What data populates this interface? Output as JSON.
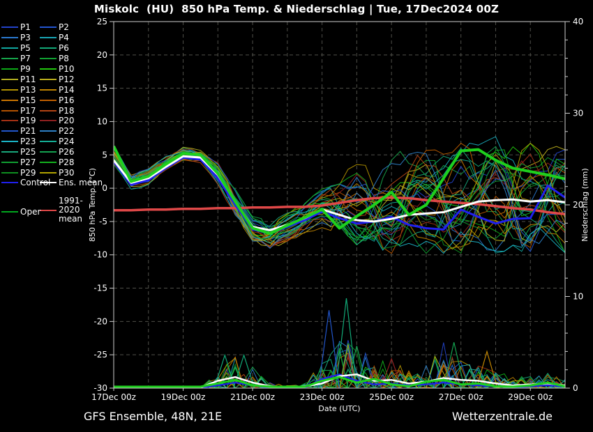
{
  "title": "Miskolc  (HU)  850 hPa Temp. & Niederschlag | Tue, 17Dec2024 00Z",
  "footer": {
    "left": "GFS Ensemble, 48N, 21E",
    "right": "Wetterzentrale.de"
  },
  "colors": {
    "background": "#000000",
    "frame": "#cfcfcf",
    "grid": "#50504a",
    "text": "#ffffff",
    "ens_mean": "#ffffff",
    "control": "#2020ee",
    "oper_line": "#1ed01e",
    "oper_legend": "#00a81e",
    "climate": "#e04848"
  },
  "legend": {
    "members": [
      {
        "label": "P1",
        "color": "#2343cc"
      },
      {
        "label": "P2",
        "color": "#2356d2"
      },
      {
        "label": "P3",
        "color": "#2b79d0"
      },
      {
        "label": "P4",
        "color": "#18a6b6"
      },
      {
        "label": "P5",
        "color": "#10a8a0"
      },
      {
        "label": "P6",
        "color": "#12aa78"
      },
      {
        "label": "P7",
        "color": "#16a34a"
      },
      {
        "label": "P8",
        "color": "#10a032"
      },
      {
        "label": "P9",
        "color": "#0caa16"
      },
      {
        "label": "P10",
        "color": "#22c80e"
      },
      {
        "label": "P11",
        "color": "#b4b020"
      },
      {
        "label": "P12",
        "color": "#bdb01c"
      },
      {
        "label": "P13",
        "color": "#b29200"
      },
      {
        "label": "P14",
        "color": "#c08400"
      },
      {
        "label": "P15",
        "color": "#cc7600"
      },
      {
        "label": "P16",
        "color": "#c26000"
      },
      {
        "label": "P17",
        "color": "#b35200"
      },
      {
        "label": "P18",
        "color": "#b44414"
      },
      {
        "label": "P19",
        "color": "#a33014"
      },
      {
        "label": "P20",
        "color": "#8e2020"
      },
      {
        "label": "P21",
        "color": "#2256cc"
      },
      {
        "label": "P22",
        "color": "#2d80c6"
      },
      {
        "label": "P23",
        "color": "#1ab4c6"
      },
      {
        "label": "P24",
        "color": "#14ae96"
      },
      {
        "label": "P25",
        "color": "#18a87c"
      },
      {
        "label": "P26",
        "color": "#14a350"
      },
      {
        "label": "P27",
        "color": "#10a032"
      },
      {
        "label": "P28",
        "color": "#14b21e"
      },
      {
        "label": "P29",
        "color": "#0e9020"
      },
      {
        "label": "P30",
        "color": "#b2a400"
      }
    ],
    "control_label": "Control",
    "ens_mean_label": "Ens. mean",
    "climate_label_line1": "1991-2020",
    "climate_label_line2": "mean",
    "oper_label": "Oper"
  },
  "axes": {
    "x": {
      "label": "Date (UTC)",
      "tick_labels": [
        "17Dec 00z",
        "19Dec 00z",
        "21Dec 00z",
        "23Dec 00z",
        "25Dec 00z",
        "27Dec 00z",
        "29Dec 00z"
      ],
      "label_every_days": 2,
      "grid_every_days": 1,
      "days_total": 13
    },
    "y_left": {
      "label": "850 hPa Temp. (°C)",
      "min": -30,
      "max": 25,
      "tick_step": 5
    },
    "y_right": {
      "label": "Niederschlag (mm)",
      "min": 0,
      "max": 40,
      "tick_step": 10,
      "minor_step": 2
    }
  },
  "chart_data": {
    "type": "line",
    "title": "Miskolc (HU) 850 hPa Temp. & Niederschlag | Tue, 17Dec2024 00Z",
    "xlabel": "Date (UTC)",
    "ylabel_left": "850 hPa Temp. (°C)",
    "ylabel_right": "Niederschlag (mm)",
    "ylim_temp": [
      -30,
      25
    ],
    "ylim_precip": [
      0,
      40
    ],
    "x_days": [
      0,
      0.5,
      1,
      1.5,
      2,
      2.5,
      3,
      3.5,
      4,
      4.5,
      5,
      5.5,
      6,
      6.5,
      7,
      7.5,
      8,
      8.5,
      9,
      9.5,
      10,
      10.5,
      11,
      11.5,
      12,
      12.5,
      13
    ],
    "temp_series": [
      {
        "name": "1991-2020 mean",
        "color": "#e04848",
        "width": 3.5,
        "values": [
          -3.3,
          -3.3,
          -3.2,
          -3.2,
          -3.1,
          -3.1,
          -3.0,
          -3.0,
          -2.9,
          -2.9,
          -2.8,
          -2.8,
          -2.6,
          -2.2,
          -1.8,
          -1.5,
          -1.4,
          -1.5,
          -1.8,
          -2.0,
          -2.2,
          -2.4,
          -2.7,
          -3.0,
          -3.2,
          -3.6,
          -3.9
        ]
      },
      {
        "name": "Control",
        "color": "#2020ee",
        "width": 3,
        "values": [
          4.0,
          0.5,
          1.2,
          3.0,
          4.6,
          4.3,
          1.5,
          -2.5,
          -6.2,
          -6.8,
          -5.8,
          -4.8,
          -3.5,
          -4.5,
          -5.3,
          -5.0,
          -4.3,
          -5.5,
          -6.0,
          -6.2,
          -3.2,
          -4.3,
          -5.3,
          -4.6,
          -4.5,
          0.4,
          -1.4
        ]
      },
      {
        "name": "Ens. mean",
        "color": "#ffffff",
        "width": 3,
        "values": [
          4.2,
          0.8,
          1.5,
          3.2,
          4.8,
          4.6,
          2.0,
          -2.0,
          -5.8,
          -6.3,
          -5.5,
          -4.5,
          -3.2,
          -4.0,
          -4.8,
          -5.0,
          -4.6,
          -4.0,
          -3.8,
          -3.6,
          -2.8,
          -2.0,
          -1.8,
          -1.7,
          -2.0,
          -1.8,
          -2.1
        ]
      },
      {
        "name": "Oper",
        "color": "#1ed01e",
        "width": 4,
        "values": [
          6.3,
          1.0,
          1.8,
          3.6,
          5.2,
          5.0,
          2.2,
          -2.0,
          -6.0,
          -6.8,
          -5.6,
          -4.4,
          -3.2,
          -6.0,
          -4.2,
          -2.5,
          -0.6,
          -4.0,
          -2.5,
          1.5,
          5.6,
          5.8,
          4.2,
          3.0,
          2.5,
          2.0,
          1.4
        ]
      }
    ],
    "ensemble_envelope": {
      "min": [
        3.5,
        -0.5,
        0.5,
        2.5,
        3.8,
        3.5,
        0.5,
        -4.5,
        -8.0,
        -9.5,
        -8.0,
        -7.0,
        -6.0,
        -8.0,
        -9.0,
        -10.0,
        -10.0,
        -9.0,
        -10.0,
        -11.0,
        -10.0,
        -9.0,
        -10.0,
        -11.0,
        -10.0,
        -9.0,
        -10.0
      ],
      "max": [
        6.5,
        2.5,
        3.0,
        5.0,
        6.2,
        6.0,
        4.0,
        0.5,
        -4.0,
        -4.5,
        -3.5,
        -2.0,
        0.0,
        2.0,
        4.0,
        4.0,
        5.0,
        6.5,
        6.0,
        6.0,
        7.0,
        7.0,
        8.0,
        7.0,
        7.0,
        7.0,
        6.0
      ]
    },
    "precip_series": [
      {
        "name": "Control precip",
        "color": "#2020ee",
        "width": 2.2,
        "values": [
          0,
          0,
          0,
          0,
          0,
          0,
          0.3,
          0.6,
          0.3,
          0,
          0,
          0,
          1.0,
          1.5,
          0.8,
          0.4,
          0.5,
          0.3,
          0.4,
          0.6,
          0.4,
          0.3,
          0.2,
          0.1,
          0.2,
          0.3,
          0.2
        ]
      },
      {
        "name": "Ens. mean precip",
        "color": "#ffffff",
        "width": 2.5,
        "values": [
          0,
          0,
          0,
          0,
          0,
          0,
          0.8,
          1.2,
          0.6,
          0.2,
          0.1,
          0.2,
          0.5,
          1.3,
          1.5,
          0.8,
          0.9,
          0.5,
          0.7,
          1.1,
          0.9,
          0.8,
          0.5,
          0.3,
          0.4,
          0.5,
          0.3
        ]
      },
      {
        "name": "Oper precip",
        "color": "#1ed01e",
        "width": 3,
        "values": [
          0,
          0,
          0,
          0,
          0,
          0,
          0.5,
          0.9,
          0.3,
          0,
          0,
          0.1,
          0.8,
          1.2,
          0.6,
          1.0,
          0.4,
          0.2,
          0.7,
          0.9,
          0.4,
          0.5,
          0.2,
          0.1,
          0.3,
          0.6,
          0.2
        ]
      }
    ],
    "precip_member_activity": [
      0,
      0,
      0,
      0,
      0,
      0,
      2.0,
      3.5,
      2.5,
      0.6,
      0.3,
      0.5,
      3.0,
      6.0,
      5.0,
      3.0,
      3.0,
      2.0,
      2.5,
      5.0,
      3.0,
      2.5,
      2.0,
      1.2,
      1.5,
      1.5,
      1.0
    ],
    "precip_events": [
      {
        "t": 3.2,
        "mm": 3.6,
        "color": "#12aa78"
      },
      {
        "t": 3.75,
        "mm": 3.6,
        "color": "#12aa78"
      },
      {
        "t": 6.2,
        "mm": 8.5,
        "color": "#2256cc"
      },
      {
        "t": 6.7,
        "mm": 9.8,
        "color": "#12aa78"
      },
      {
        "t": 7.0,
        "mm": 4.6,
        "color": "#14a350"
      },
      {
        "t": 8.0,
        "mm": 3.2,
        "color": "#8e2020"
      },
      {
        "t": 9.5,
        "mm": 3.0,
        "color": "#2d80c6"
      },
      {
        "t": 9.8,
        "mm": 5.0,
        "color": "#14a350"
      },
      {
        "t": 10.75,
        "mm": 4.0,
        "color": "#c08400"
      },
      {
        "t": 12.5,
        "mm": 1.6,
        "color": "#12aa78"
      }
    ]
  }
}
